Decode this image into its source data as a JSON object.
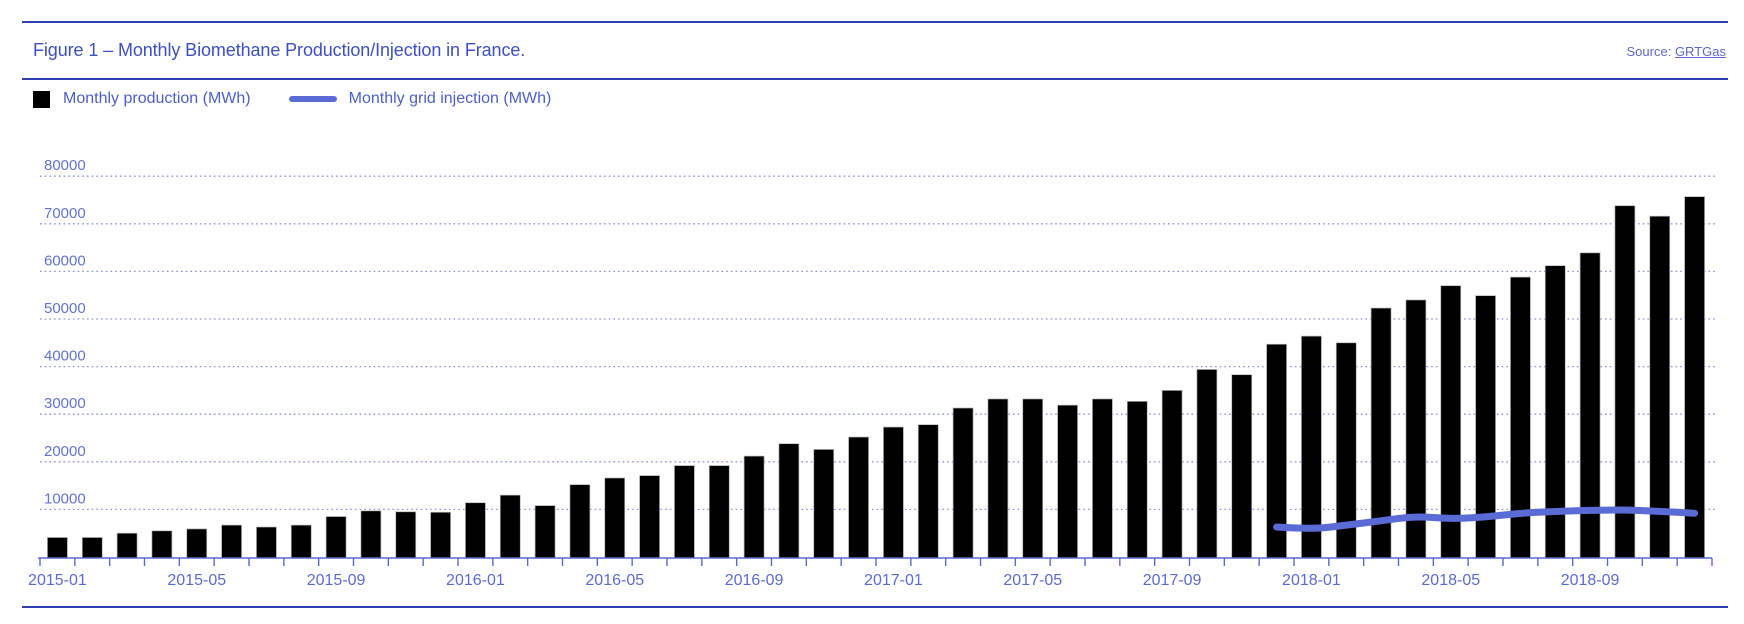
{
  "header": {
    "title": "Figure 1 – Monthly Biomethane Production/Injection in France.",
    "source_prefix": "Source: ",
    "source_link": "GRTGas"
  },
  "legend": {
    "production_label": "Monthly production (MWh)",
    "injection_label": "Monthly grid injection (MWh)"
  },
  "colors": {
    "bar": "#000000",
    "line": "#5b6bd6",
    "grid": "#8892de",
    "axis": "#5b68cf",
    "axis_label": "#5b6bd5",
    "y_label": "#6272d4",
    "title": "#3d4fc4",
    "rule": "#2e3fb3"
  },
  "chart_data": {
    "type": "bar",
    "title": "Figure 1 – Monthly Biomethane Production/Injection in France.",
    "xlabel": "",
    "ylabel": "",
    "ylim": [
      0,
      84000
    ],
    "y_ticks": [
      10000,
      20000,
      30000,
      40000,
      50000,
      60000,
      70000,
      80000
    ],
    "grid": "dotted-horizontal",
    "legend_position": "top-left",
    "x_label_every": 4,
    "x_tick_labels": [
      "2015-01",
      "2015-05",
      "2015-09",
      "2016-01",
      "2016-05",
      "2016-09",
      "2017-01",
      "2017-05",
      "2017-09",
      "2018-01",
      "2018-05",
      "2018-09"
    ],
    "categories": [
      "2015-01",
      "2015-02",
      "2015-03",
      "2015-04",
      "2015-05",
      "2015-06",
      "2015-07",
      "2015-08",
      "2015-09",
      "2015-10",
      "2015-11",
      "2015-12",
      "2016-01",
      "2016-02",
      "2016-03",
      "2016-04",
      "2016-05",
      "2016-06",
      "2016-07",
      "2016-08",
      "2016-09",
      "2016-10",
      "2016-11",
      "2016-12",
      "2017-01",
      "2017-02",
      "2017-03",
      "2017-04",
      "2017-05",
      "2017-06",
      "2017-07",
      "2017-08",
      "2017-09",
      "2017-10",
      "2017-11",
      "2017-12",
      "2018-01",
      "2018-02",
      "2018-03",
      "2018-04",
      "2018-05",
      "2018-06",
      "2018-07",
      "2018-08",
      "2018-09",
      "2018-10",
      "2018-11",
      "2018-12"
    ],
    "series": [
      {
        "name": "Monthly production (MWh)",
        "type": "bar",
        "color": "#000000",
        "values": [
          4100,
          4100,
          5000,
          5500,
          5900,
          6700,
          6300,
          6700,
          8500,
          9700,
          9500,
          9400,
          11400,
          13000,
          10800,
          15200,
          16600,
          17100,
          19200,
          19200,
          21200,
          23800,
          22600,
          25200,
          27300,
          27800,
          31300,
          33200,
          33200,
          31900,
          33200,
          32700,
          35000,
          39400,
          38300,
          44700,
          46400,
          45000,
          52300,
          54000,
          57000,
          54900,
          58800,
          61200,
          63900,
          73800,
          71600,
          75700
        ]
      },
      {
        "name": "Monthly grid injection (MWh)",
        "type": "line",
        "color": "#5b6bd6",
        "values": [
          null,
          null,
          null,
          null,
          null,
          null,
          null,
          null,
          null,
          null,
          null,
          null,
          null,
          null,
          null,
          null,
          null,
          null,
          null,
          null,
          null,
          null,
          null,
          null,
          null,
          null,
          null,
          null,
          null,
          null,
          null,
          null,
          null,
          null,
          null,
          6300,
          5800,
          6700,
          7600,
          8600,
          8000,
          8400,
          9200,
          9600,
          9800,
          9900,
          9600,
          9200
        ]
      }
    ]
  }
}
